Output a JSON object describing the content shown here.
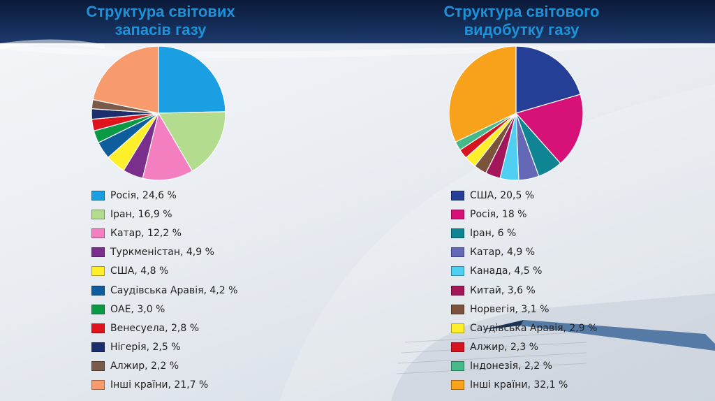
{
  "chart_data": [
    {
      "type": "pie",
      "title": "Структура світових\nзапасів газу",
      "slices": [
        {
          "label": "Росія, 24,6 %",
          "name": "Росія",
          "value": 24.6,
          "color": "#1a9fe3"
        },
        {
          "label": "Іран, 16,9 %",
          "name": "Іран",
          "value": 16.9,
          "color": "#b3dc8e"
        },
        {
          "label": "Катар, 12,2 %",
          "name": "Катар",
          "value": 12.2,
          "color": "#f37ec0"
        },
        {
          "label": "Туркменістан, 4,9 %",
          "name": "Туркменістан",
          "value": 4.9,
          "color": "#7a2f8d"
        },
        {
          "label": "США, 4,8 %",
          "name": "США",
          "value": 4.8,
          "color": "#ffee2a"
        },
        {
          "label": "Саудівська Аравія, 4,2 %",
          "name": "Саудівська Аравія",
          "value": 4.2,
          "color": "#0e5e9e"
        },
        {
          "label": "ОАЕ, 3,0 %",
          "name": "ОАЕ",
          "value": 3.0,
          "color": "#0a9a46"
        },
        {
          "label": "Венесуела, 2,8 %",
          "name": "Венесуела",
          "value": 2.8,
          "color": "#e0141e"
        },
        {
          "label": "Нігерія, 2,5 %",
          "name": "Нігерія",
          "value": 2.5,
          "color": "#1a2f6b"
        },
        {
          "label": "Алжир, 2,2 %",
          "name": "Алжир",
          "value": 2.2,
          "color": "#7a5a48"
        },
        {
          "label": "Інші країни, 21,7 %",
          "name": "Інші країни",
          "value": 21.7,
          "color": "#f79a6c"
        }
      ]
    },
    {
      "type": "pie",
      "title": "Структура світового\nвидобутку газу",
      "slices": [
        {
          "label": "США, 20,5 %",
          "name": "США",
          "value": 20.5,
          "color": "#263f96"
        },
        {
          "label": "Росія, 18 %",
          "name": "Росія",
          "value": 18,
          "color": "#d61178"
        },
        {
          "label": "Іран, 6 %",
          "name": "Іран",
          "value": 6,
          "color": "#0f8493"
        },
        {
          "label": "Катар, 4,9 %",
          "name": "Катар",
          "value": 4.9,
          "color": "#6468b6"
        },
        {
          "label": "Канада, 4,5 %",
          "name": "Канада",
          "value": 4.5,
          "color": "#4fd0f3"
        },
        {
          "label": "Китай, 3,6 %",
          "name": "Китай",
          "value": 3.6,
          "color": "#a3175a"
        },
        {
          "label": "Норвегія, 3,1 %",
          "name": "Норвегія",
          "value": 3.1,
          "color": "#7b523c"
        },
        {
          "label": "Саудівська Аравія, 2,9 %",
          "name": "Саудівська Аравія",
          "value": 2.9,
          "color": "#ffee2a"
        },
        {
          "label": "Алжир, 2,3 %",
          "name": "Алжир",
          "value": 2.3,
          "color": "#d7131f"
        },
        {
          "label": "Індонезія, 2,2 %",
          "name": "Індонезія",
          "value": 2.2,
          "color": "#45b98a"
        },
        {
          "label": "Інші країни, 32,1 %",
          "name": "Інші країни",
          "value": 32.1,
          "color": "#f7a21a"
        }
      ]
    }
  ]
}
